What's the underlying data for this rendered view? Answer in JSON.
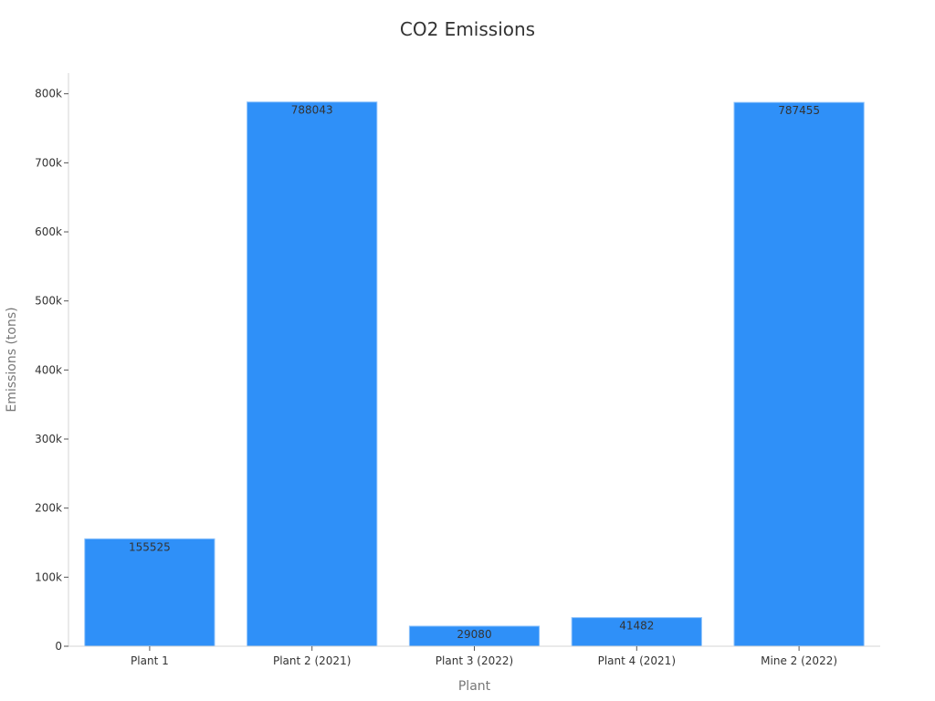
{
  "chart_data": {
    "type": "bar",
    "title": "CO2 Emissions",
    "xlabel": "Plant",
    "ylabel": "Emissions (tons)",
    "categories": [
      "Plant 1",
      "Plant 2 (2021)",
      "Plant 3 (2022)",
      "Plant 4 (2021)",
      "Mine 2 (2022)"
    ],
    "values": [
      155525,
      788043,
      29080,
      41482,
      787455
    ],
    "ylim": [
      0,
      830000
    ],
    "yticks": [
      0,
      100000,
      200000,
      300000,
      400000,
      500000,
      600000,
      700000,
      800000
    ],
    "ytick_labels": [
      "0",
      "100k",
      "200k",
      "300k",
      "400k",
      "500k",
      "600k",
      "700k",
      "800k"
    ],
    "grid": false,
    "bar_color": "#2f90f8",
    "show_data_labels": true
  }
}
